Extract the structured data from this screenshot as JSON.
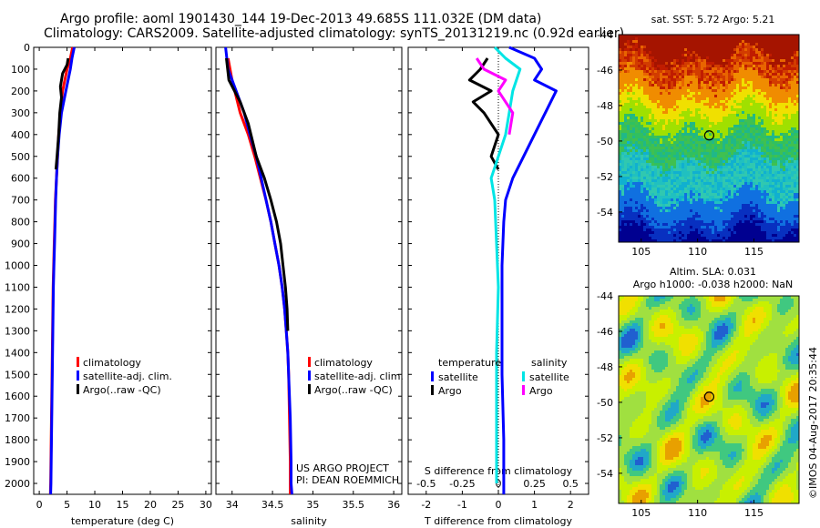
{
  "header": {
    "line1": "Argo profile: aoml 1901430_144 19-Dec-2013 49.685S 111.032E (DM data)",
    "line2": "Climatology: CARS2009. Satellite-adjusted climatology: synTS_20131219.nc (0.92d earlier)"
  },
  "right": {
    "sst_title": "sat. SST: 5.72 Argo: 5.21",
    "sla_title1": "Altim. SLA: 0.031",
    "sla_title2": "Argo h1000: -0.038 h2000: NaN",
    "stamp": "©IMOS 04-Aug-2017 20:35:44"
  },
  "colors": {
    "climatology": "#ff0000",
    "satellite": "#0000ff",
    "argo": "#000000",
    "sat_salinity": "#00e5e5",
    "argo_salinity": "#ff00ff"
  },
  "chart_data": [
    {
      "type": "line",
      "xlabel": "temperature (deg C)",
      "xlim": [
        -1,
        31
      ],
      "xticks": [
        0,
        5,
        10,
        15,
        20,
        25,
        30
      ],
      "ylim": [
        2050,
        0
      ],
      "yticks": [
        0,
        100,
        200,
        300,
        400,
        500,
        600,
        700,
        800,
        900,
        1000,
        1100,
        1200,
        1300,
        1400,
        1500,
        1600,
        1700,
        1800,
        1900,
        2000
      ],
      "legend": [
        "climatology",
        "satellite-adj. clim.",
        "Argo(..raw -QC)"
      ],
      "series": [
        {
          "name": "climatology",
          "color": "#ff0000",
          "points": [
            [
              6.0,
              0
            ],
            [
              5.6,
              50
            ],
            [
              5.0,
              100
            ],
            [
              4.2,
              200
            ],
            [
              3.8,
              300
            ],
            [
              3.5,
              400
            ],
            [
              3.3,
              500
            ],
            [
              3.1,
              600
            ],
            [
              2.9,
              700
            ],
            [
              2.8,
              800
            ],
            [
              2.7,
              900
            ],
            [
              2.6,
              1000
            ],
            [
              2.5,
              1100
            ],
            [
              2.45,
              1200
            ],
            [
              2.4,
              1300
            ],
            [
              2.35,
              1400
            ],
            [
              2.3,
              1500
            ],
            [
              2.25,
              1600
            ],
            [
              2.2,
              1700
            ],
            [
              2.15,
              1800
            ],
            [
              2.1,
              1900
            ],
            [
              2.05,
              2000
            ],
            [
              2.0,
              2050
            ]
          ]
        },
        {
          "name": "satellite-adj. clim.",
          "color": "#0000ff",
          "points": [
            [
              6.3,
              0
            ],
            [
              5.9,
              50
            ],
            [
              5.6,
              100
            ],
            [
              4.8,
              200
            ],
            [
              4.0,
              300
            ],
            [
              3.6,
              400
            ],
            [
              3.3,
              500
            ],
            [
              3.1,
              600
            ],
            [
              2.95,
              700
            ],
            [
              2.85,
              800
            ],
            [
              2.75,
              900
            ],
            [
              2.65,
              1000
            ],
            [
              2.55,
              1100
            ],
            [
              2.5,
              1200
            ],
            [
              2.45,
              1300
            ],
            [
              2.4,
              1400
            ],
            [
              2.35,
              1500
            ],
            [
              2.3,
              1600
            ],
            [
              2.25,
              1700
            ],
            [
              2.2,
              1800
            ],
            [
              2.15,
              1900
            ],
            [
              2.1,
              2000
            ],
            [
              2.05,
              2050
            ]
          ]
        },
        {
          "name": "Argo(..raw -QC)",
          "color": "#000000",
          "points": [
            [
              5.2,
              50
            ],
            [
              5.0,
              80
            ],
            [
              4.2,
              120
            ],
            [
              3.8,
              180
            ],
            [
              4.0,
              230
            ],
            [
              3.7,
              300
            ],
            [
              3.5,
              400
            ],
            [
              3.2,
              500
            ],
            [
              3.0,
              560
            ]
          ]
        }
      ]
    },
    {
      "type": "line",
      "xlabel": "salinity",
      "xlim": [
        33.8,
        36.1
      ],
      "xticks": [
        34,
        34.5,
        35,
        35.5,
        36
      ],
      "xticklabels": [
        "34",
        "34.5",
        "35",
        "35.5",
        "36"
      ],
      "ylim": [
        2050,
        0
      ],
      "legend": [
        "climatology",
        "satellite-adj. clim.",
        "Argo(..raw -QC)"
      ],
      "annotations": [
        "US ARGO PROJECT",
        "PI: DEAN ROEMMICH"
      ],
      "series": [
        {
          "name": "climatology",
          "color": "#ff0000",
          "points": [
            [
              33.95,
              50
            ],
            [
              34.0,
              150
            ],
            [
              34.1,
              300
            ],
            [
              34.2,
              400
            ],
            [
              34.28,
              500
            ],
            [
              34.35,
              600
            ],
            [
              34.42,
              700
            ],
            [
              34.48,
              800
            ],
            [
              34.53,
              900
            ],
            [
              34.58,
              1000
            ],
            [
              34.62,
              1100
            ],
            [
              34.65,
              1200
            ],
            [
              34.67,
              1300
            ],
            [
              34.69,
              1400
            ],
            [
              34.7,
              1500
            ],
            [
              34.71,
              1700
            ],
            [
              34.72,
              1900
            ],
            [
              34.72,
              2050
            ]
          ]
        },
        {
          "name": "satellite-adj. clim.",
          "color": "#0000ff",
          "points": [
            [
              33.92,
              0
            ],
            [
              33.95,
              100
            ],
            [
              34.05,
              200
            ],
            [
              34.15,
              300
            ],
            [
              34.22,
              400
            ],
            [
              34.3,
              500
            ],
            [
              34.36,
              600
            ],
            [
              34.42,
              700
            ],
            [
              34.48,
              800
            ],
            [
              34.53,
              900
            ],
            [
              34.58,
              1000
            ],
            [
              34.62,
              1100
            ],
            [
              34.65,
              1200
            ],
            [
              34.67,
              1300
            ],
            [
              34.69,
              1400
            ],
            [
              34.7,
              1500
            ],
            [
              34.72,
              1700
            ],
            [
              34.73,
              1900
            ],
            [
              34.73,
              2000
            ],
            [
              34.74,
              2050
            ]
          ]
        },
        {
          "name": "Argo(..raw -QC)",
          "color": "#000000",
          "points": [
            [
              33.93,
              50
            ],
            [
              33.96,
              150
            ],
            [
              34.1,
              250
            ],
            [
              34.2,
              350
            ],
            [
              34.3,
              500
            ],
            [
              34.4,
              600
            ],
            [
              34.48,
              700
            ],
            [
              34.55,
              800
            ],
            [
              34.6,
              900
            ],
            [
              34.63,
              1000
            ],
            [
              34.66,
              1100
            ],
            [
              34.68,
              1200
            ],
            [
              34.69,
              1300
            ]
          ]
        }
      ]
    },
    {
      "type": "line",
      "xlabel": "T difference from climatology",
      "xlabel_top": "S difference from climatology",
      "xlim": [
        -2.5,
        2.5
      ],
      "xticks": [
        -2,
        -1,
        0,
        1,
        2
      ],
      "xticks_top": [
        -0.5,
        -0.25,
        0,
        0.25,
        0.5
      ],
      "xticks_top_labels": [
        "-0.5",
        "-0.25",
        "0",
        "0.25",
        "0.5"
      ],
      "ylim": [
        2050,
        0
      ],
      "legend": {
        "temperature_title": "temperature",
        "salinity_title": "salinity",
        "entries": [
          "satellite",
          "Argo",
          "satellite",
          "Argo"
        ]
      },
      "series": [
        {
          "name": "satellite",
          "color": "#0000ff",
          "points": [
            [
              0.3,
              0
            ],
            [
              1.0,
              50
            ],
            [
              1.2,
              100
            ],
            [
              1.0,
              150
            ],
            [
              1.6,
              200
            ],
            [
              1.3,
              300
            ],
            [
              1.0,
              400
            ],
            [
              0.7,
              500
            ],
            [
              0.4,
              600
            ],
            [
              0.2,
              700
            ],
            [
              0.15,
              800
            ],
            [
              0.1,
              1000
            ],
            [
              0.1,
              1200
            ],
            [
              0.1,
              1500
            ],
            [
              0.15,
              1800
            ],
            [
              0.15,
              2050
            ]
          ]
        },
        {
          "name": "Argo",
          "color": "#000000",
          "points": [
            [
              -0.3,
              50
            ],
            [
              -0.5,
              100
            ],
            [
              -0.8,
              150
            ],
            [
              -0.2,
              200
            ],
            [
              -0.7,
              250
            ],
            [
              -0.4,
              300
            ],
            [
              0.0,
              400
            ],
            [
              -0.2,
              500
            ],
            [
              0.0,
              560
            ]
          ]
        },
        {
          "name": "satellite",
          "color": "#00e5e5",
          "points": [
            [
              -0.1,
              0
            ],
            [
              0.2,
              50
            ],
            [
              0.6,
              100
            ],
            [
              0.4,
              200
            ],
            [
              0.3,
              300
            ],
            [
              0.2,
              400
            ],
            [
              0.0,
              500
            ],
            [
              -0.2,
              600
            ],
            [
              -0.1,
              700
            ],
            [
              -0.05,
              900
            ],
            [
              0.0,
              1100
            ],
            [
              -0.05,
              1400
            ],
            [
              -0.05,
              1700
            ],
            [
              -0.05,
              2000
            ]
          ]
        },
        {
          "name": "Argo",
          "color": "#ff00ff",
          "points": [
            [
              -0.6,
              50
            ],
            [
              -0.4,
              100
            ],
            [
              0.2,
              150
            ],
            [
              0.0,
              200
            ],
            [
              0.4,
              300
            ],
            [
              0.3,
              400
            ]
          ]
        }
      ]
    }
  ],
  "maps": {
    "yticks": [
      -44,
      -46,
      -48,
      -50,
      -52,
      -54
    ],
    "xticks": [
      105,
      110,
      115
    ],
    "marker": {
      "lon": 111.032,
      "lat": -49.685
    }
  }
}
